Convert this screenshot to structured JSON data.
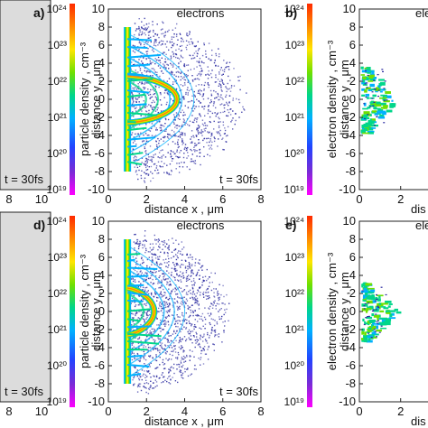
{
  "figure": {
    "panels": [
      {
        "id": "a",
        "label": "a)",
        "time_label": "t = 30fs",
        "x_ticks": [
          "8",
          "10"
        ]
      },
      {
        "id": "b",
        "label": "b)",
        "title": "electrons",
        "colorbar_label": "particle density , cm⁻³",
        "y_label": "distance y , μm",
        "x_label": "distance x , μm"
      },
      {
        "id": "c",
        "label": "b)",
        "title": "ele",
        "colorbar_label": "electron density , cm⁻³",
        "y_label": "distance y , μm",
        "x_label": "dis"
      },
      {
        "id": "d",
        "label": "d)",
        "time_label": "t = 30fs",
        "x_ticks": [
          "8",
          "10"
        ]
      },
      {
        "id": "e",
        "label": "d)",
        "title": "electrons",
        "colorbar_label": "particle density , cm⁻³",
        "y_label": "distance y , μm",
        "x_label": "distance x , μm",
        "time_label": "t = 30fs"
      },
      {
        "id": "f",
        "label": "e)",
        "title": "ele",
        "colorbar_label": "electron density , cm⁻³",
        "y_label": "distance y , μm",
        "x_label": "dis"
      }
    ],
    "colorbar_ticks": [
      "10¹⁹",
      "10²⁰",
      "10²¹",
      "10²²",
      "10²³",
      "10²⁴"
    ],
    "colors": {
      "panel_background": "#dcdcdc",
      "scatter": "#2a2aa0",
      "colormap": [
        "#ff00ff",
        "#7b2bd6",
        "#2244ff",
        "#00b0ff",
        "#00d68a",
        "#6fe000",
        "#ffe600",
        "#ff8a00",
        "#ff2a00"
      ]
    }
  },
  "chart_data": [
    {
      "type": "heatmap",
      "title": "electrons",
      "xlabel": "distance x , μm",
      "ylabel": "distance y , μm",
      "xlim": [
        0,
        8
      ],
      "ylim": [
        -10,
        10
      ],
      "x_ticks": [
        "0",
        "2",
        "4",
        "6",
        "8"
      ],
      "y_ticks": [
        "-10",
        "-8",
        "-6",
        "-4",
        "-2",
        "0",
        "2",
        "4",
        "6",
        "8",
        "10"
      ],
      "colorbar_label": "particle density , cm⁻³",
      "colorbar_range_log10": [
        19,
        24
      ],
      "annotation": "t = 30fs",
      "structure": {
        "target_x": 1.0,
        "target_y_range": [
          -8,
          8
        ],
        "central_bulge_x": 3.6,
        "arc_outer_x": 6.8
      }
    },
    {
      "type": "heatmap",
      "title": "electrons",
      "xlabel": "distance x , μm",
      "ylabel": "distance y , μm",
      "xlim": [
        0,
        8
      ],
      "ylim": [
        -10,
        10
      ],
      "x_ticks": [
        "0",
        "2",
        "4",
        "6",
        "8"
      ],
      "y_ticks": [
        "-10",
        "-8",
        "-6",
        "-4",
        "-2",
        "0",
        "2",
        "4",
        "6",
        "8",
        "10"
      ],
      "colorbar_label": "particle density , cm⁻³",
      "colorbar_range_log10": [
        19,
        24
      ],
      "annotation": "t = 30fs",
      "structure": {
        "target_x": 1.0,
        "target_y_range": [
          -8,
          8
        ],
        "central_bulge_x": 2.4,
        "arc_outer_x": 6.0
      }
    },
    {
      "type": "heatmap",
      "title": "ele",
      "xlabel": "dis",
      "ylabel": "distance y , μm",
      "xlim": [
        0,
        3.5
      ],
      "ylim": [
        -10,
        10
      ],
      "x_ticks": [
        "0",
        "2"
      ],
      "y_ticks": [
        "-10",
        "-8",
        "-6",
        "-4",
        "-2",
        "0",
        "2",
        "4",
        "6",
        "8",
        "10"
      ],
      "colorbar_label": "electron density , cm⁻³",
      "colorbar_ticks": [
        "10¹⁹",
        "10²⁰",
        "10²¹",
        "10²²",
        "10²³",
        "10²⁴"
      ]
    },
    {
      "type": "heatmap",
      "title": "ele",
      "xlabel": "dis",
      "ylabel": "distance y , μm",
      "xlim": [
        0,
        3.5
      ],
      "ylim": [
        -10,
        10
      ],
      "x_ticks": [
        "0",
        "2"
      ],
      "y_ticks": [
        "-10",
        "-8",
        "-6",
        "-4",
        "-2",
        "0",
        "2",
        "4",
        "6",
        "8",
        "10"
      ],
      "colorbar_label": "electron density , cm⁻³",
      "colorbar_ticks": [
        "10¹⁹",
        "10²⁰",
        "10²¹",
        "10²²",
        "10²³",
        "10²⁴"
      ]
    }
  ]
}
